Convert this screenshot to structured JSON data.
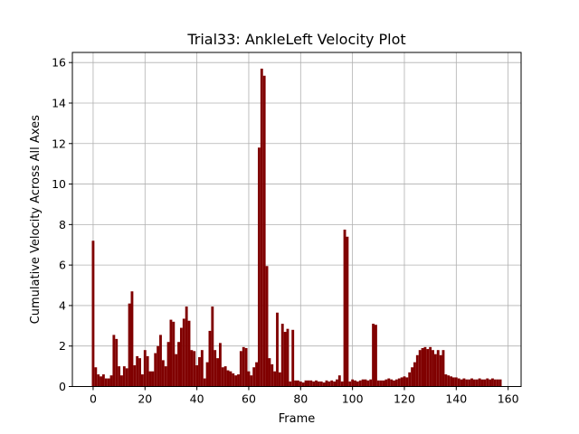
{
  "chart_data": {
    "type": "bar",
    "title": "Trial33: AnkleLeft Velocity Plot",
    "xlabel": "Frame",
    "ylabel": "Cumulative Velocity Across All Axes",
    "xlim": [
      -8,
      165
    ],
    "ylim": [
      0,
      16.5
    ],
    "xticks": [
      0,
      20,
      40,
      60,
      80,
      100,
      120,
      140,
      160
    ],
    "yticks": [
      0,
      2,
      4,
      6,
      8,
      10,
      12,
      14,
      16
    ],
    "grid": true,
    "bar_color": "#800000",
    "x": [
      0,
      1,
      2,
      3,
      4,
      5,
      6,
      7,
      8,
      9,
      10,
      11,
      12,
      13,
      14,
      15,
      16,
      17,
      18,
      19,
      20,
      21,
      22,
      23,
      24,
      25,
      26,
      27,
      28,
      29,
      30,
      31,
      32,
      33,
      34,
      35,
      36,
      37,
      38,
      39,
      40,
      41,
      42,
      43,
      44,
      45,
      46,
      47,
      48,
      49,
      50,
      51,
      52,
      53,
      54,
      55,
      56,
      57,
      58,
      59,
      60,
      61,
      62,
      63,
      64,
      65,
      66,
      67,
      68,
      69,
      70,
      71,
      72,
      73,
      74,
      75,
      76,
      77,
      78,
      79,
      80,
      81,
      82,
      83,
      84,
      85,
      86,
      87,
      88,
      89,
      90,
      91,
      92,
      93,
      94,
      95,
      96,
      97,
      98,
      99,
      100,
      101,
      102,
      103,
      104,
      105,
      106,
      107,
      108,
      109,
      110,
      111,
      112,
      113,
      114,
      115,
      116,
      117,
      118,
      119,
      120,
      121,
      122,
      123,
      124,
      125,
      126,
      127,
      128,
      129,
      130,
      131,
      132,
      133,
      134,
      135,
      136,
      137,
      138,
      139,
      140,
      141,
      142,
      143,
      144,
      145,
      146,
      147,
      148,
      149,
      150,
      151,
      152,
      153,
      154,
      155,
      156,
      157
    ],
    "values": [
      7.2,
      0.95,
      0.6,
      0.5,
      0.6,
      0.4,
      0.4,
      0.55,
      2.55,
      2.35,
      1.0,
      0.55,
      1.0,
      0.9,
      4.1,
      4.7,
      1.05,
      1.5,
      1.4,
      0.6,
      1.8,
      1.5,
      0.75,
      0.75,
      1.65,
      2.0,
      2.55,
      1.3,
      1.0,
      2.2,
      3.3,
      3.2,
      1.6,
      2.2,
      2.9,
      3.35,
      3.95,
      3.25,
      1.8,
      1.75,
      1.05,
      1.45,
      1.8,
      0.4,
      1.2,
      2.75,
      3.95,
      1.8,
      1.4,
      2.15,
      0.95,
      1.0,
      0.8,
      0.75,
      0.65,
      0.55,
      0.6,
      1.75,
      1.95,
      1.9,
      0.75,
      0.55,
      0.95,
      1.2,
      11.8,
      15.7,
      15.35,
      5.95,
      1.4,
      1.1,
      0.75,
      3.65,
      0.7,
      3.1,
      2.7,
      2.85,
      0.25,
      2.8,
      0.3,
      0.3,
      0.25,
      0.2,
      0.3,
      0.3,
      0.3,
      0.25,
      0.3,
      0.25,
      0.25,
      0.2,
      0.3,
      0.25,
      0.3,
      0.25,
      0.35,
      0.55,
      0.25,
      7.75,
      7.4,
      0.25,
      0.35,
      0.3,
      0.25,
      0.3,
      0.35,
      0.35,
      0.3,
      0.35,
      3.1,
      3.05,
      0.3,
      0.3,
      0.3,
      0.35,
      0.4,
      0.35,
      0.3,
      0.35,
      0.4,
      0.45,
      0.5,
      0.45,
      0.7,
      0.95,
      1.2,
      1.55,
      1.8,
      1.9,
      1.95,
      1.85,
      1.95,
      1.8,
      1.6,
      1.8,
      1.55,
      1.8,
      0.6,
      0.55,
      0.5,
      0.45,
      0.45,
      0.4,
      0.35,
      0.4,
      0.35,
      0.35,
      0.4,
      0.35,
      0.35,
      0.4,
      0.35,
      0.35,
      0.4,
      0.35,
      0.4,
      0.35,
      0.35,
      0.35
    ]
  }
}
